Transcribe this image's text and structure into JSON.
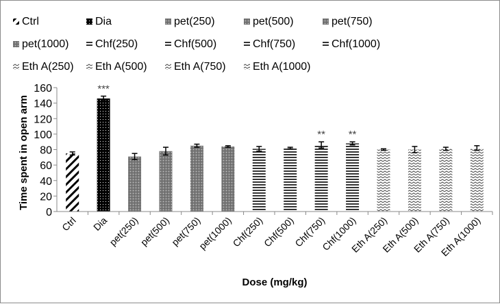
{
  "chart_data": {
    "type": "bar",
    "title": "",
    "xlabel": "Dose (mg/kg)",
    "ylabel": "Time spent in  open arm",
    "ylim": [
      0,
      160
    ],
    "yticks": [
      0,
      20,
      40,
      60,
      80,
      100,
      120,
      140,
      160
    ],
    "grid": false,
    "legend_position": "top",
    "categories": [
      "Ctrl",
      "Dia",
      "pet(250)",
      "pet(500)",
      "pet(750)",
      "pet(1000)",
      "Chf(250)",
      "Chf(500)",
      "Chf(750)",
      "Chf(1000)",
      "Eth A(250)",
      "Eth A(500)",
      "Eth A(750)",
      "Eth A(1000)"
    ],
    "values": [
      75,
      146,
      71,
      78,
      85,
      84,
      81,
      82,
      86,
      88,
      80,
      80,
      81,
      82
    ],
    "errors": [
      2,
      3,
      4,
      5,
      2,
      1,
      3,
      1,
      4,
      2,
      1,
      4,
      2,
      3
    ],
    "annotations": [
      "",
      "***",
      "",
      "",
      "",
      "",
      "",
      "",
      "**",
      "**",
      "",
      "",
      "",
      ""
    ],
    "patterns": [
      "diag",
      "dots-black",
      "dots-gray",
      "dots-gray",
      "dots-gray",
      "dots-gray",
      "hlines",
      "hlines",
      "hlines",
      "hlines",
      "wave",
      "wave",
      "wave",
      "wave"
    ]
  }
}
